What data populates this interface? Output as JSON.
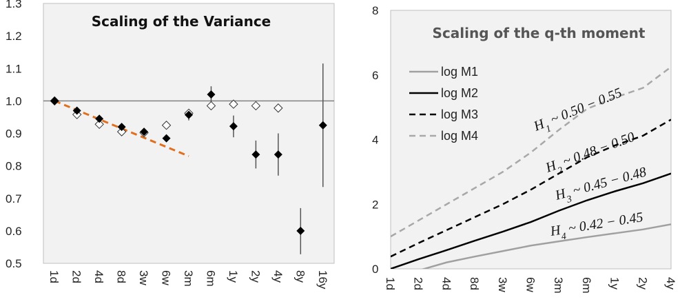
{
  "chart_data": [
    {
      "type": "scatter",
      "title": "Scaling of the Variance",
      "categories": [
        "1d",
        "2d",
        "4d",
        "8d",
        "3w",
        "6w",
        "3m",
        "6m",
        "1y",
        "2y",
        "4y",
        "8y",
        "16y"
      ],
      "ylim": [
        0.5,
        1.3
      ],
      "yticks": [
        "0.5",
        "0.6",
        "0.7",
        "0.8",
        "0.9",
        "1.0",
        "1.1",
        "1.2",
        "1.3"
      ],
      "reference_line": 1.0,
      "series": [
        {
          "marker": "filled-diamond",
          "color": "#000000",
          "values": [
            1.0,
            0.97,
            0.945,
            0.92,
            0.905,
            0.885,
            0.957,
            1.02,
            0.922,
            0.835,
            0.835,
            0.6,
            0.925
          ],
          "error_low": [
            1.0,
            0.963,
            0.935,
            0.91,
            0.897,
            0.875,
            0.94,
            0.99,
            0.888,
            0.792,
            0.77,
            0.528,
            0.735
          ],
          "error_high": [
            1.0,
            0.977,
            0.955,
            0.93,
            0.913,
            0.895,
            0.97,
            1.045,
            0.955,
            0.878,
            0.9,
            0.67,
            1.115
          ]
        },
        {
          "marker": "open-diamond",
          "color": "#000000",
          "values": [
            1.0,
            0.958,
            0.928,
            0.905,
            0.902,
            0.925,
            0.962,
            0.985,
            0.99,
            0.985,
            0.978,
            null,
            null
          ]
        },
        {
          "type": "dashed-trend",
          "color": "#E07020",
          "from": {
            "x": "1d",
            "y": 1.0
          },
          "to": {
            "x": "3m",
            "y": 0.83
          }
        }
      ],
      "grid": false
    },
    {
      "type": "line",
      "title": "Scaling of the q-th moment",
      "categories": [
        "1d",
        "2d",
        "4d",
        "8d",
        "3w",
        "6w",
        "3m",
        "6m",
        "1y",
        "2y",
        "4y"
      ],
      "ylim": [
        0,
        8
      ],
      "yticks": [
        "0",
        "2",
        "4",
        "6",
        "8"
      ],
      "series": [
        {
          "name": "log M1",
          "color": "#A0A0A0",
          "dash": "solid",
          "values": [
            -0.35,
            -0.05,
            0.2,
            0.38,
            0.55,
            0.72,
            0.85,
            0.98,
            1.1,
            1.22,
            1.38
          ]
        },
        {
          "name": "log M2",
          "color": "#000000",
          "dash": "solid",
          "values": [
            0.0,
            0.3,
            0.58,
            0.87,
            1.15,
            1.45,
            1.8,
            2.12,
            2.4,
            2.65,
            2.95
          ]
        },
        {
          "name": "log M3",
          "color": "#000000",
          "dash": "dashed",
          "values": [
            0.38,
            0.8,
            1.2,
            1.6,
            2.0,
            2.45,
            2.95,
            3.45,
            3.82,
            4.12,
            4.62
          ]
        },
        {
          "name": "log M4",
          "color": "#A8A8A8",
          "dash": "dashed",
          "values": [
            1.0,
            1.5,
            2.0,
            2.5,
            3.0,
            3.6,
            4.3,
            4.95,
            5.3,
            5.6,
            6.25
          ]
        }
      ],
      "annotations": [
        {
          "sym": "H",
          "sub": "1",
          "text": " ~ 0.50 − 0.55"
        },
        {
          "sym": "H",
          "sub": "2",
          "text": " ~ 0.48 − 0.50"
        },
        {
          "sym": "H",
          "sub": "3",
          "text": " ~ 0.45 − 0.48"
        },
        {
          "sym": "H",
          "sub": "4",
          "text": " ~ 0.42 − 0.45"
        }
      ],
      "grid": false
    }
  ]
}
